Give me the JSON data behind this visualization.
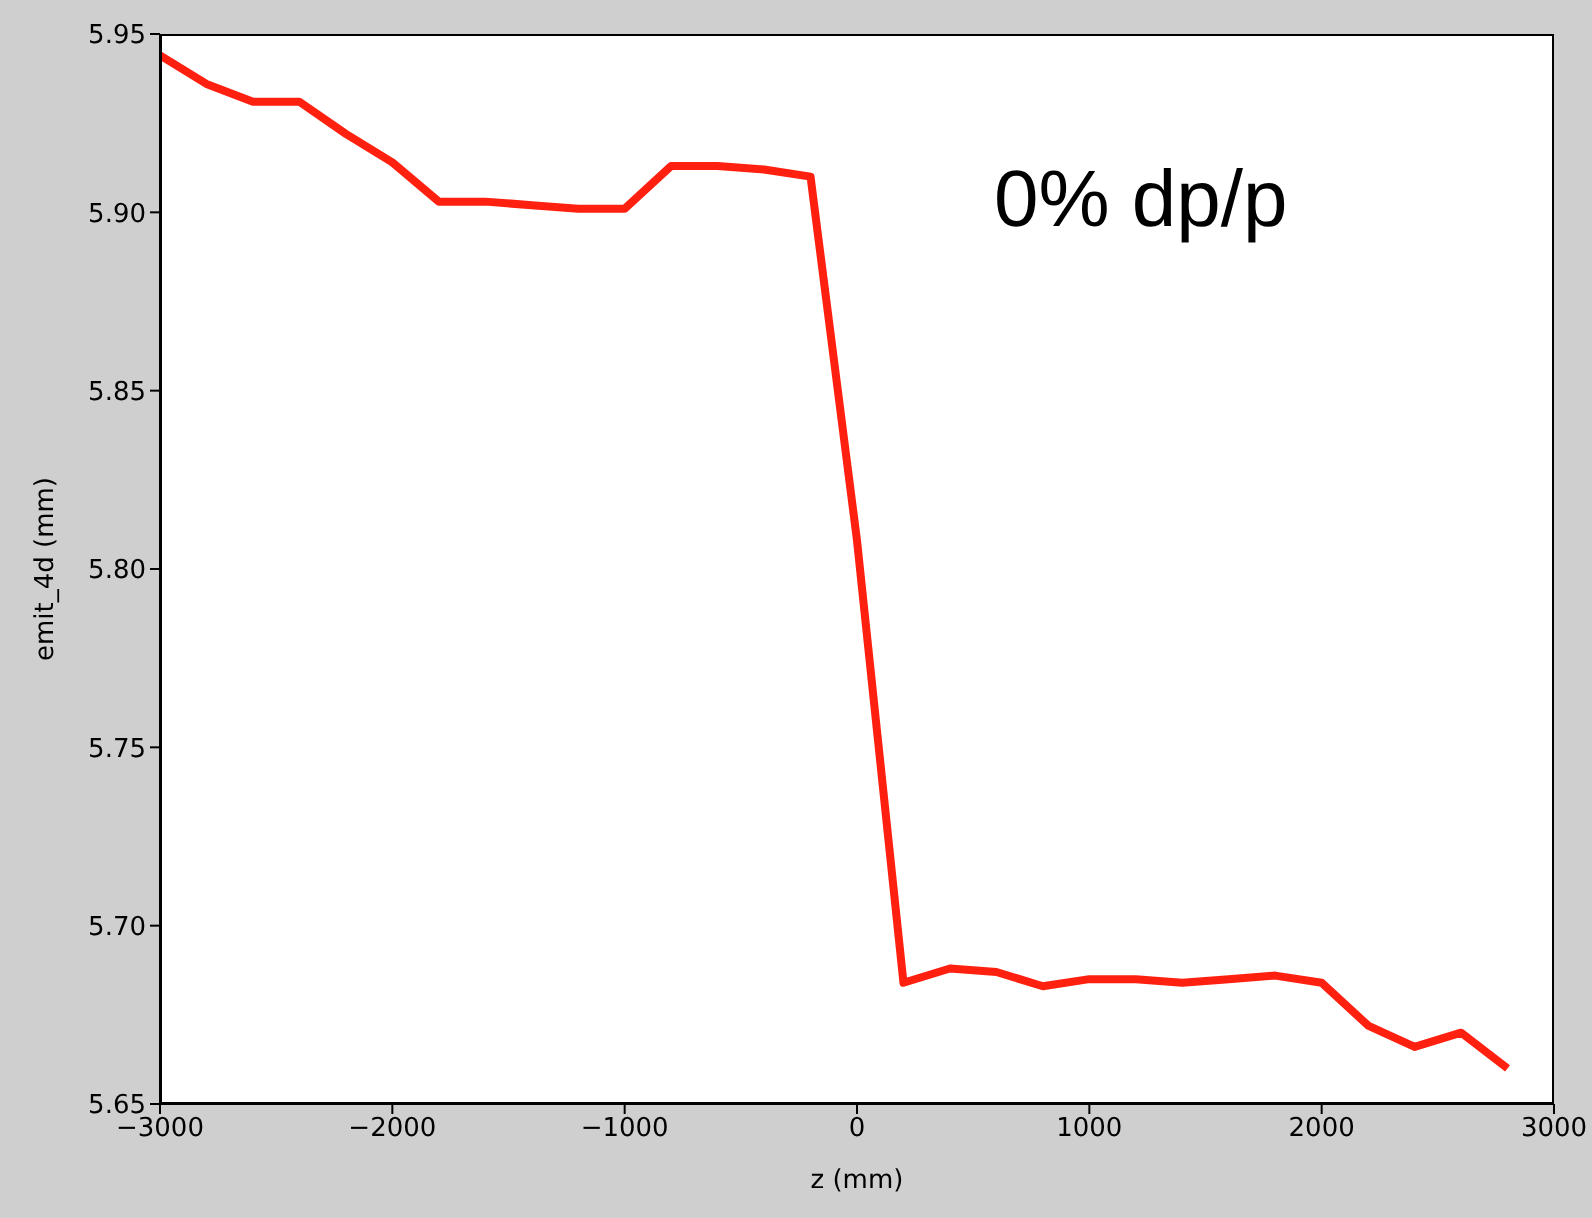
{
  "chart_data": {
    "type": "line",
    "xlabel": "z (mm)",
    "ylabel": "emit_4d (mm)",
    "annotations": [
      "0% dp/p"
    ],
    "x": [
      -3000,
      -2800,
      -2600,
      -2400,
      -2200,
      -2000,
      -1800,
      -1600,
      -1400,
      -1200,
      -1000,
      -800,
      -600,
      -400,
      -200,
      0,
      200,
      400,
      600,
      800,
      1000,
      1200,
      1400,
      1600,
      1800,
      2000,
      2200,
      2400,
      2600,
      2800
    ],
    "series": [
      {
        "color": "#ff2010",
        "values": [
          5.944,
          5.936,
          5.931,
          5.931,
          5.922,
          5.914,
          5.903,
          5.903,
          5.902,
          5.901,
          5.901,
          5.913,
          5.913,
          5.912,
          5.91,
          5.808,
          5.684,
          5.688,
          5.687,
          5.683,
          5.685,
          5.685,
          5.684,
          5.685,
          5.686,
          5.684,
          5.672,
          5.666,
          5.67,
          5.66
        ]
      }
    ],
    "xlim": [
      -3000,
      3000
    ],
    "xticks": [
      {
        "value": -3000,
        "label": "−3000"
      },
      {
        "value": -2000,
        "label": "−2000"
      },
      {
        "value": -1000,
        "label": "−1000"
      },
      0,
      1000,
      2000,
      3000
    ],
    "ylim": [
      5.65,
      5.95
    ],
    "yticks": [
      {
        "value": 5.65,
        "label": "5.65"
      },
      {
        "value": 5.7,
        "label": "5.70"
      },
      {
        "value": 5.75,
        "label": "5.75"
      },
      {
        "value": 5.8,
        "label": "5.80"
      },
      {
        "value": 5.85,
        "label": "5.85"
      },
      {
        "value": 5.9,
        "label": "5.90"
      },
      {
        "value": 5.95,
        "label": "5.95"
      }
    ],
    "grid": false,
    "marker": "none",
    "line_style": "solid"
  }
}
